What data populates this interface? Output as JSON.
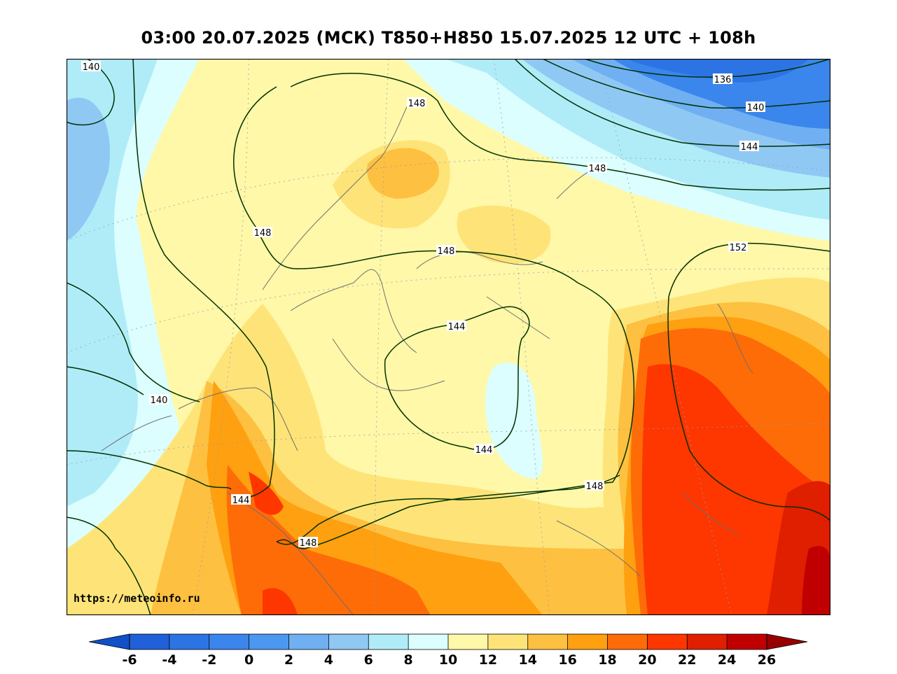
{
  "title": "03:00 20.07.2025 (МСК) T850+H850 15.07.2025 12 UTC + 108h",
  "watermark": "https://meteoinfo.ru",
  "colorbar": {
    "levels": [
      "-6",
      "-4",
      "-2",
      "0",
      "2",
      "4",
      "6",
      "8",
      "10",
      "12",
      "14",
      "16",
      "18",
      "20",
      "22",
      "24",
      "26"
    ],
    "colors": [
      "#2060d8",
      "#2c74e4",
      "#3a86ec",
      "#4c98f0",
      "#70b0f2",
      "#90c8f4",
      "#b0ecf8",
      "#dcfefe",
      "#fef8a8",
      "#fee478",
      "#fec040",
      "#fea010",
      "#fe6c08",
      "#fe3600",
      "#e01e00",
      "#c00000"
    ],
    "under_color": "#1050c8",
    "over_color": "#980000"
  },
  "contours": {
    "labels": [
      "140",
      "136",
      "140",
      "144",
      "148",
      "148",
      "148",
      "148",
      "152",
      "144",
      "140",
      "144",
      "144",
      "148",
      "148"
    ]
  }
}
